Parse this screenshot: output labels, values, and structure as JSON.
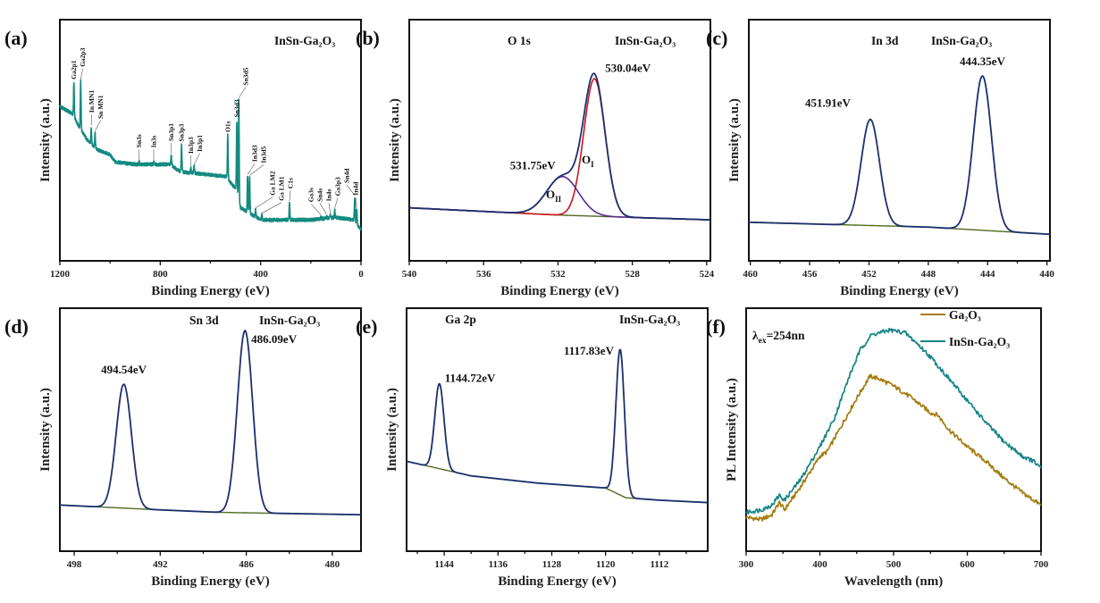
{
  "chart_data": [
    {
      "panel": "(a)",
      "type": "line",
      "title": "InSn-Ga₂O₃",
      "xlabel": "Binding Energy (eV)",
      "ylabel": "Intensity (a.u.)",
      "xlim": [
        1200,
        0
      ],
      "ylim": [
        0,
        100
      ],
      "xticks": [
        1200,
        800,
        400,
        0
      ],
      "minor_step": 200,
      "colors": {
        "survey": "#138a80"
      },
      "baseline": [
        [
          1200,
          64
        ],
        [
          1150,
          61
        ],
        [
          1120,
          55
        ],
        [
          1090,
          50
        ],
        [
          1050,
          46
        ],
        [
          1000,
          44
        ],
        [
          980,
          41
        ],
        [
          900,
          40
        ],
        [
          760,
          40
        ],
        [
          720,
          37
        ],
        [
          540,
          35
        ],
        [
          500,
          30
        ],
        [
          480,
          22
        ],
        [
          450,
          20
        ],
        [
          400,
          17
        ],
        [
          200,
          17
        ],
        [
          100,
          18
        ],
        [
          30,
          17
        ],
        [
          0,
          13
        ]
      ],
      "peaks": [
        {
          "label": "Ga2p1",
          "x": 1144,
          "h": 14
        },
        {
          "label": "Ga2p3",
          "x": 1117,
          "h": 20
        },
        {
          "label": "In MN1",
          "x": 1075,
          "h": 7
        },
        {
          "label": "Sn MN1",
          "x": 1060,
          "h": 6
        },
        {
          "label": "Sn3s",
          "x": 884,
          "h": 1
        },
        {
          "label": "In3s",
          "x": 826,
          "h": 1
        },
        {
          "label": "Sn3p1",
          "x": 756,
          "h": 4
        },
        {
          "label": "Sn3p3",
          "x": 715,
          "h": 11
        },
        {
          "label": "In3p3",
          "x": 678,
          "h": 2
        },
        {
          "label": "In3p1",
          "x": 665,
          "h": 3
        },
        {
          "label": "O1s",
          "x": 531,
          "h": 18
        },
        {
          "label": "Sn3d3",
          "x": 495,
          "h": 30
        },
        {
          "label": "Sn3d5",
          "x": 487,
          "h": 42
        },
        {
          "label": "In3d3",
          "x": 452,
          "h": 15
        },
        {
          "label": "In3d5",
          "x": 444,
          "h": 15
        },
        {
          "label": "Ga LM2",
          "x": 420,
          "h": 3
        },
        {
          "label": "Ga LM1",
          "x": 395,
          "h": 2
        },
        {
          "label": "C1s",
          "x": 285,
          "h": 7
        },
        {
          "label": "Ga3s",
          "x": 160,
          "h": 1
        },
        {
          "label": "Sn4s",
          "x": 137,
          "h": 1
        },
        {
          "label": "In4s",
          "x": 122,
          "h": 1
        },
        {
          "label": "Ga3p3",
          "x": 105,
          "h": 3
        },
        {
          "label": "Sn4d",
          "x": 25,
          "h": 10
        },
        {
          "label": "In4d",
          "x": 17,
          "h": 6
        }
      ]
    },
    {
      "panel": "(b)",
      "type": "line",
      "title": "InSn-Ga₂O₃",
      "subtitle": "O 1s",
      "xlabel": "Binding Energy (eV)",
      "ylabel": "Intensity (a.u.)",
      "xlim": [
        540,
        523.8
      ],
      "ylim": [
        0,
        100
      ],
      "xticks": [
        540,
        536,
        532,
        528,
        524
      ],
      "minor_step": 2,
      "colors": {
        "envelope": "#1c2f6e",
        "O_I": "#c8141e",
        "O_II": "#5b2d8c",
        "background": "#4f6a1e"
      },
      "baseline": [
        [
          540,
          22
        ],
        [
          532,
          19
        ],
        [
          528,
          18
        ],
        [
          523.8,
          17
        ]
      ],
      "components": [
        {
          "name": {
            "main": "O",
            "sub": "I"
          },
          "x": 530.04,
          "h": 57,
          "fwhm": 1.35,
          "color_key": "O_I"
        },
        {
          "name": {
            "main": "O",
            "sub": "II"
          },
          "x": 531.75,
          "h": 16,
          "fwhm": 2.0,
          "color_key": "O_II"
        }
      ],
      "annotations": [
        {
          "text": "530.04eV",
          "x": 530.04
        },
        {
          "text": "531.75eV",
          "x": 531.75
        }
      ]
    },
    {
      "panel": "(c)",
      "type": "line",
      "title": "InSn-Ga₂O₃",
      "subtitle": "In 3d",
      "xlabel": "Binding Energy (eV)",
      "ylabel": "Intensity (a.u.)",
      "xlim": [
        460.1,
        439.8
      ],
      "ylim": [
        0,
        100
      ],
      "xticks": [
        460,
        456,
        452,
        448,
        444,
        440
      ],
      "minor_step": 2,
      "colors": {
        "envelope": "#1c2f6e",
        "background": "#4f6a1e"
      },
      "baseline": [
        [
          460.1,
          16
        ],
        [
          448,
          14
        ],
        [
          439.8,
          11
        ]
      ],
      "components": [
        {
          "x": 451.91,
          "h": 44,
          "fwhm": 1.45
        },
        {
          "x": 444.35,
          "h": 64,
          "fwhm": 1.45
        }
      ],
      "annotations": [
        {
          "text": "451.91eV",
          "x": 451.91
        },
        {
          "text": "444.35eV",
          "x": 444.35
        }
      ]
    },
    {
      "panel": "(d)",
      "type": "line",
      "title": "InSn-Ga₂O₃",
      "subtitle": "Sn 3d",
      "xlabel": "Binding Energy (eV)",
      "ylabel": "Intensity (a.u.)",
      "xlim": [
        499,
        478
      ],
      "ylim": [
        0,
        100
      ],
      "xticks": [
        498,
        492,
        486,
        480
      ],
      "minor_step": 3,
      "colors": {
        "envelope": "#1c2f6e",
        "background": "#4f6a1e",
        "annotation": "#1f3a6e"
      },
      "baseline": [
        [
          499,
          19
        ],
        [
          492,
          17
        ],
        [
          488,
          16
        ],
        [
          478,
          15
        ]
      ],
      "components": [
        {
          "x": 494.54,
          "h": 51,
          "fwhm": 1.25
        },
        {
          "x": 486.09,
          "h": 75,
          "fwhm": 1.25
        }
      ],
      "annotations": [
        {
          "text": "494.54eV",
          "x": 494.54
        },
        {
          "text": "486.09eV",
          "x": 486.09
        }
      ]
    },
    {
      "panel": "(e)",
      "type": "line",
      "title": "InSn-Ga₂O₃",
      "subtitle": "Ga 2p",
      "xlabel": "Binding Energy (eV)",
      "ylabel": "Intensity (a.u.)",
      "xlim": [
        1149.6,
        1104.8
      ],
      "ylim": [
        0,
        100
      ],
      "xticks": [
        1144,
        1136,
        1128,
        1120,
        1112
      ],
      "minor_step": 4,
      "colors": {
        "envelope": "#1c2f6e",
        "background": "#4f6a1e"
      },
      "baseline": [
        [
          1149.6,
          37
        ],
        [
          1140,
          31
        ],
        [
          1130,
          28
        ],
        [
          1120,
          26
        ],
        [
          1117,
          22
        ],
        [
          1112,
          21
        ],
        [
          1104.8,
          20
        ]
      ],
      "components": [
        {
          "x": 1144.72,
          "h": 35,
          "fwhm": 1.6
        },
        {
          "x": 1117.83,
          "h": 60,
          "fwhm": 1.5
        }
      ],
      "annotations": [
        {
          "text": "1144.72eV",
          "x": 1144.72
        },
        {
          "text": "1117.83eV",
          "x": 1117.83
        }
      ]
    },
    {
      "panel": "(f)",
      "type": "line",
      "xlabel": "Wavelength (nm)",
      "ylabel": "PL Intensity (a.u.)",
      "xlim": [
        300,
        700
      ],
      "ylim": [
        0,
        100
      ],
      "xticks": [
        300,
        400,
        500,
        600,
        700
      ],
      "minor_step": 50,
      "label": {
        "main": "λ",
        "sub": "ex",
        "rest": "=254nn"
      },
      "legend_position": "top-right",
      "series": [
        {
          "name": "Ga₂O₃",
          "color": "#a67c10",
          "points": [
            [
              300,
              14
            ],
            [
              320,
              13
            ],
            [
              335,
              15
            ],
            [
              345,
              20
            ],
            [
              352,
              17
            ],
            [
              375,
              27
            ],
            [
              400,
              39
            ],
            [
              410,
              41
            ],
            [
              430,
              52
            ],
            [
              450,
              63
            ],
            [
              468,
              72
            ],
            [
              480,
              71
            ],
            [
              500,
              68
            ],
            [
              525,
              63
            ],
            [
              550,
              57
            ],
            [
              560,
              56
            ],
            [
              575,
              50
            ],
            [
              600,
              43
            ],
            [
              625,
              37
            ],
            [
              650,
              30
            ],
            [
              675,
              24
            ],
            [
              700,
              19
            ]
          ]
        },
        {
          "name": "InSn-Ga₂O₃",
          "color": "#178585",
          "points": [
            [
              300,
              16
            ],
            [
              320,
              17
            ],
            [
              335,
              19
            ],
            [
              345,
              23
            ],
            [
              352,
              21
            ],
            [
              375,
              30
            ],
            [
              400,
              43
            ],
            [
              420,
              55
            ],
            [
              440,
              72
            ],
            [
              455,
              83
            ],
            [
              470,
              89
            ],
            [
              495,
              91
            ],
            [
              515,
              90
            ],
            [
              530,
              86
            ],
            [
              550,
              80
            ],
            [
              575,
              71
            ],
            [
              600,
              62
            ],
            [
              625,
              53
            ],
            [
              650,
              45
            ],
            [
              675,
              39
            ],
            [
              690,
              37
            ],
            [
              700,
              34
            ]
          ]
        }
      ]
    }
  ]
}
